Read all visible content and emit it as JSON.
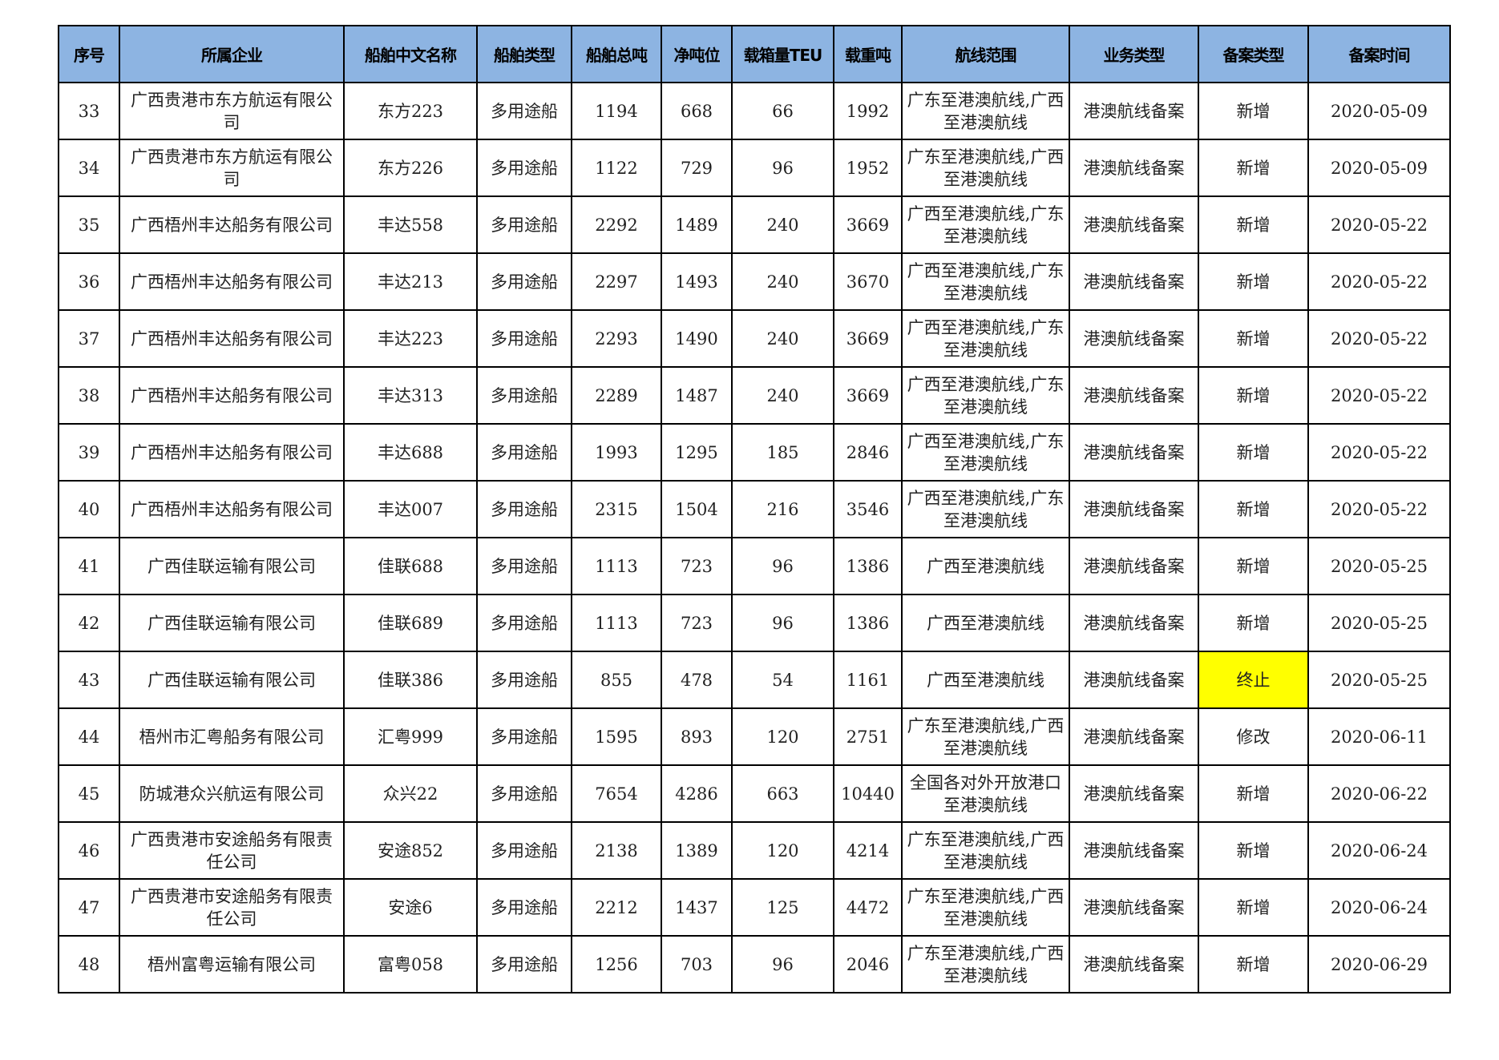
{
  "headers": [
    "序号",
    "所属企业",
    "船舶中文名称",
    "船舶类型",
    "船舶总吨",
    "净吨位",
    "载箱量TEU",
    "载重吨",
    "航线范围",
    "业务类型",
    "备案类型",
    "备案时间"
  ],
  "highlight_color": "#ffff00",
  "header_color": "#8db4e2",
  "rows": [
    [
      "33",
      "广西贵港市东方航运有限公司",
      "东方223",
      "多用途船",
      "1194",
      "668",
      "66",
      "1992",
      "广东至港澳航线,广西至港澳航线",
      "港澳航线备案",
      "新增",
      "2020-05-09"
    ],
    [
      "34",
      "广西贵港市东方航运有限公司",
      "东方226",
      "多用途船",
      "1122",
      "729",
      "96",
      "1952",
      "广东至港澳航线,广西至港澳航线",
      "港澳航线备案",
      "新增",
      "2020-05-09"
    ],
    [
      "35",
      "广西梧州丰达船务有限公司",
      "丰达558",
      "多用途船",
      "2292",
      "1489",
      "240",
      "3669",
      "广西至港澳航线,广东至港澳航线",
      "港澳航线备案",
      "新增",
      "2020-05-22"
    ],
    [
      "36",
      "广西梧州丰达船务有限公司",
      "丰达213",
      "多用途船",
      "2297",
      "1493",
      "240",
      "3670",
      "广西至港澳航线,广东至港澳航线",
      "港澳航线备案",
      "新增",
      "2020-05-22"
    ],
    [
      "37",
      "广西梧州丰达船务有限公司",
      "丰达223",
      "多用途船",
      "2293",
      "1490",
      "240",
      "3669",
      "广西至港澳航线,广东至港澳航线",
      "港澳航线备案",
      "新增",
      "2020-05-22"
    ],
    [
      "38",
      "广西梧州丰达船务有限公司",
      "丰达313",
      "多用途船",
      "2289",
      "1487",
      "240",
      "3669",
      "广西至港澳航线,广东至港澳航线",
      "港澳航线备案",
      "新增",
      "2020-05-22"
    ],
    [
      "39",
      "广西梧州丰达船务有限公司",
      "丰达688",
      "多用途船",
      "1993",
      "1295",
      "185",
      "2846",
      "广西至港澳航线,广东至港澳航线",
      "港澳航线备案",
      "新增",
      "2020-05-22"
    ],
    [
      "40",
      "广西梧州丰达船务有限公司",
      "丰达007",
      "多用途船",
      "2315",
      "1504",
      "216",
      "3546",
      "广西至港澳航线,广东至港澳航线",
      "港澳航线备案",
      "新增",
      "2020-05-22"
    ],
    [
      "41",
      "广西佳联运输有限公司",
      "佳联688",
      "多用途船",
      "1113",
      "723",
      "96",
      "1386",
      "广西至港澳航线",
      "港澳航线备案",
      "新增",
      "2020-05-25"
    ],
    [
      "42",
      "广西佳联运输有限公司",
      "佳联689",
      "多用途船",
      "1113",
      "723",
      "96",
      "1386",
      "广西至港澳航线",
      "港澳航线备案",
      "新增",
      "2020-05-25"
    ],
    [
      "43",
      "广西佳联运输有限公司",
      "佳联386",
      "多用途船",
      "855",
      "478",
      "54",
      "1161",
      "广西至港澳航线",
      "港澳航线备案",
      "终止",
      "2020-05-25"
    ],
    [
      "44",
      "梧州市汇粤船务有限公司",
      "汇粤999",
      "多用途船",
      "1595",
      "893",
      "120",
      "2751",
      "广东至港澳航线,广西至港澳航线",
      "港澳航线备案",
      "修改",
      "2020-06-11"
    ],
    [
      "45",
      "防城港众兴航运有限公司",
      "众兴22",
      "多用途船",
      "7654",
      "4286",
      "663",
      "10440",
      "全国各对外开放港口至港澳航线",
      "港澳航线备案",
      "新增",
      "2020-06-22"
    ],
    [
      "46",
      "广西贵港市安途船务有限责任公司",
      "安途852",
      "多用途船",
      "2138",
      "1389",
      "120",
      "4214",
      "广东至港澳航线,广西至港澳航线",
      "港澳航线备案",
      "新增",
      "2020-06-24"
    ],
    [
      "47",
      "广西贵港市安途船务有限责任公司",
      "安途6",
      "多用途船",
      "2212",
      "1437",
      "125",
      "4472",
      "广东至港澳航线,广西至港澳航线",
      "港澳航线备案",
      "新增",
      "2020-06-24"
    ],
    [
      "48",
      "梧州富粤运输有限公司",
      "富粤058",
      "多用途船",
      "1256",
      "703",
      "96",
      "2046",
      "广东至港澳航线,广西至港澳航线",
      "港澳航线备案",
      "新增",
      "2020-06-29"
    ]
  ]
}
